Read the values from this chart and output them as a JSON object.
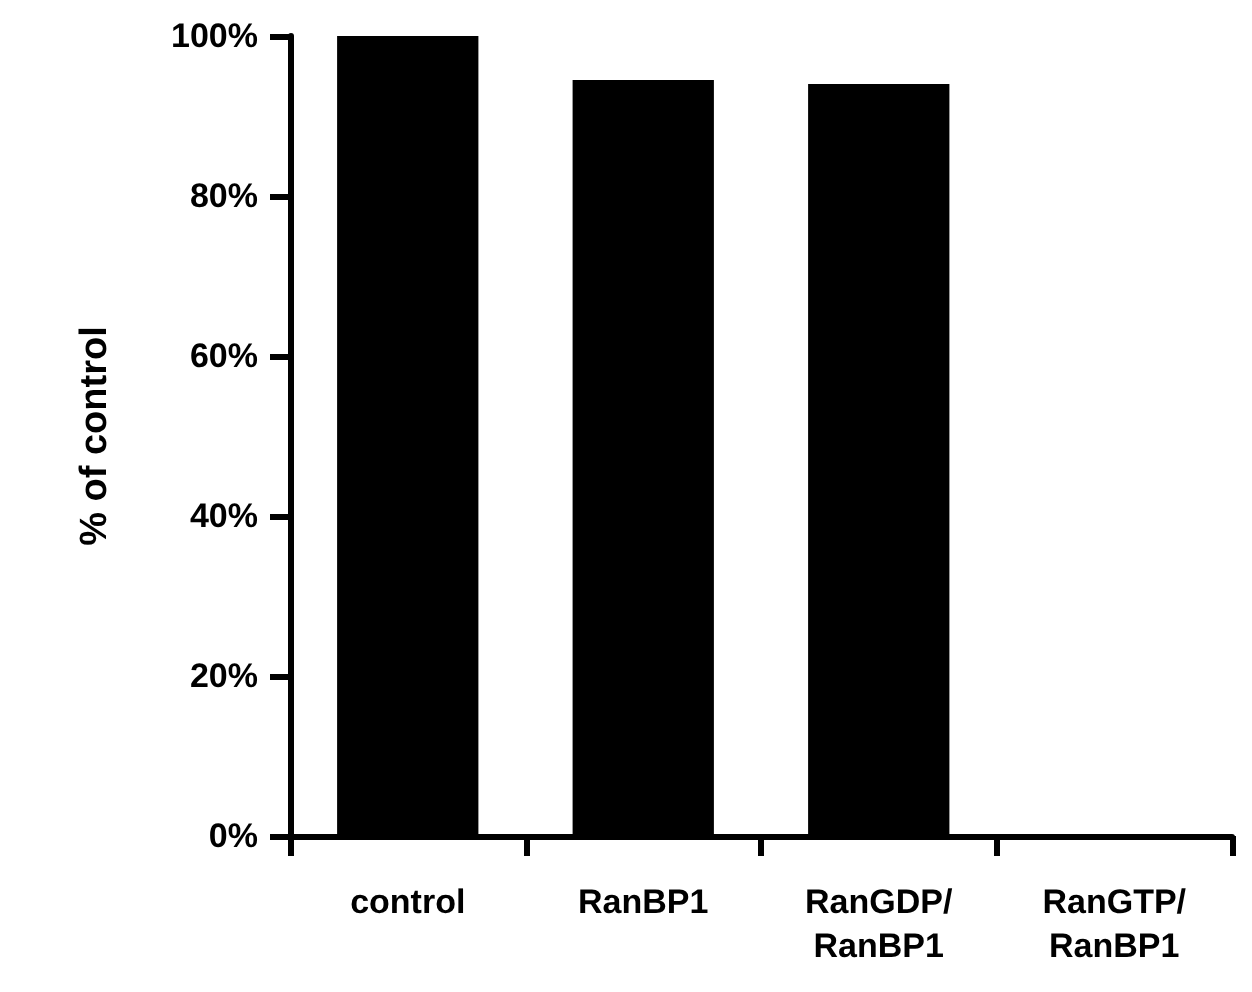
{
  "chart_data": {
    "type": "bar",
    "ylabel": "% of control",
    "categories": [
      "control",
      "RanBP1",
      "RanGDP/RanBP1",
      "RanGTP/RanBP1"
    ],
    "values": [
      100,
      94.5,
      94,
      0
    ],
    "color": "#000000",
    "ylim": [
      0,
      100
    ],
    "yticks": [
      {
        "value": 0,
        "label": "0%"
      },
      {
        "value": 20,
        "label": "20%"
      },
      {
        "value": 40,
        "label": "40%"
      },
      {
        "value": 60,
        "label": "60%"
      },
      {
        "value": 80,
        "label": "80%"
      },
      {
        "value": 100,
        "label": "100%"
      }
    ],
    "grid": false
  }
}
